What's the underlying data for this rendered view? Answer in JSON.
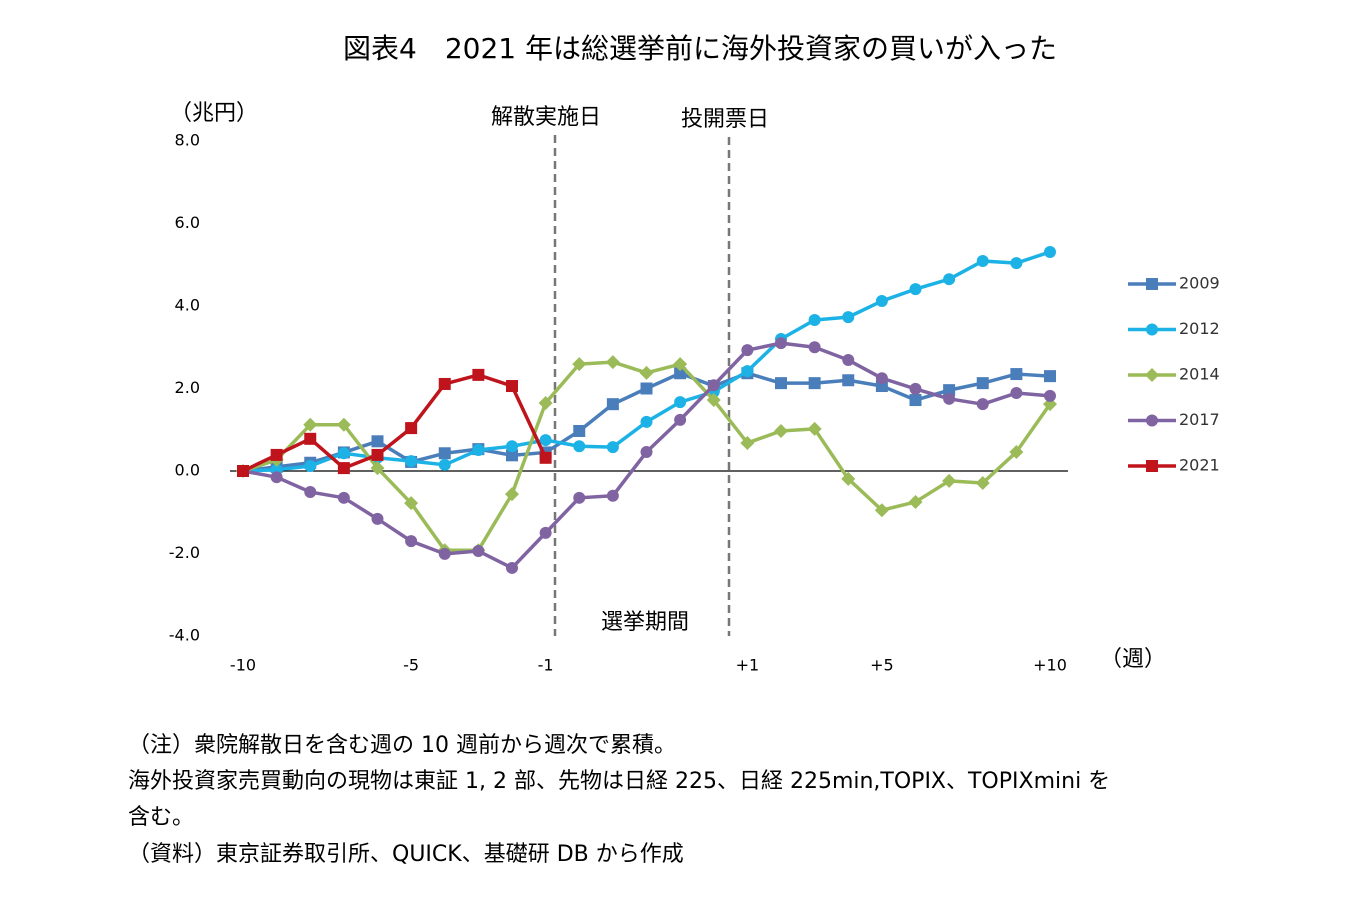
{
  "chart_data": {
    "type": "line",
    "title": "図表4　2021 年は総選挙前に海外投資家の買いが入った",
    "y_label": "（兆円）",
    "x_label": "（週）",
    "annotations": [
      "解散実施日",
      "投開票日",
      "選挙期間"
    ],
    "notes": [
      "（注）衆院解散日を含む週の 10 週前から週次で累積。",
      "海外投資家売買動向の現物は東証 1, 2 部、先物は日経 225、日経 225min,TOPIX、TOPIXmini を",
      "含む。",
      "（資料）東京証券取引所、QUICK、基礎研 DB から作成"
    ],
    "categories": [
      "-10",
      null,
      null,
      null,
      null,
      "-5",
      null,
      null,
      null,
      "-1",
      null,
      null,
      null,
      null,
      null,
      "+1",
      null,
      null,
      null,
      "+5",
      null,
      null,
      null,
      null,
      "+10"
    ],
    "ylim": [
      -4,
      8
    ],
    "yticks": [
      {
        "value": -4,
        "label": "-4.0"
      },
      {
        "value": -2,
        "label": "-2.0"
      },
      {
        "value": 0,
        "label": "0.0"
      },
      {
        "value": 2,
        "label": "2.0"
      },
      {
        "value": 4,
        "label": "4.0"
      },
      {
        "value": 6,
        "label": "6.0"
      },
      {
        "value": 8,
        "label": "8.0"
      }
    ],
    "grid": false,
    "legend": "right",
    "series": [
      {
        "name": "2009",
        "color": "#4a7ebb",
        "marker": "square",
        "values": [
          0,
          0.1,
          0.2,
          0.45,
          0.72,
          0.22,
          0.43,
          0.53,
          0.38,
          0.45,
          0.97,
          1.62,
          2.0,
          2.37,
          2.06,
          2.37,
          2.13,
          2.13,
          2.2,
          2.06,
          1.72,
          1.96,
          2.13,
          2.35,
          2.3
        ]
      },
      {
        "name": "2012",
        "color": "#1cb2e6",
        "marker": "circle",
        "values": [
          0,
          0.03,
          0.12,
          0.43,
          0.32,
          0.24,
          0.15,
          0.51,
          0.6,
          0.75,
          0.6,
          0.58,
          1.19,
          1.67,
          1.92,
          2.42,
          3.2,
          3.66,
          3.73,
          4.12,
          4.41,
          4.65,
          5.09,
          5.04,
          5.31
        ]
      },
      {
        "name": "2014",
        "color": "#9bbb59",
        "marker": "diamond",
        "values": [
          0,
          0.27,
          1.12,
          1.12,
          0.07,
          -0.78,
          -1.92,
          -1.92,
          -0.56,
          1.65,
          2.59,
          2.64,
          2.38,
          2.59,
          1.72,
          0.68,
          0.97,
          1.02,
          -0.19,
          -0.95,
          -0.75,
          -0.24,
          -0.29,
          0.46,
          1.62
        ]
      },
      {
        "name": "2017",
        "color": "#8064a2",
        "marker": "circle",
        "values": [
          0,
          -0.15,
          -0.51,
          -0.65,
          -1.16,
          -1.7,
          -2.01,
          -1.94,
          -2.35,
          -1.5,
          -0.65,
          -0.6,
          0.46,
          1.24,
          2.08,
          2.93,
          3.1,
          3.0,
          2.69,
          2.25,
          1.99,
          1.75,
          1.62,
          1.89,
          1.82
        ]
      },
      {
        "name": "2021",
        "color": "#c0141c",
        "marker": "square",
        "values": [
          0,
          0.39,
          0.78,
          0.07,
          0.39,
          1.04,
          2.11,
          2.33,
          2.06,
          0.32,
          null,
          null,
          null,
          null,
          null,
          null,
          null,
          null,
          null,
          null,
          null,
          null,
          null,
          null,
          null
        ]
      }
    ]
  }
}
